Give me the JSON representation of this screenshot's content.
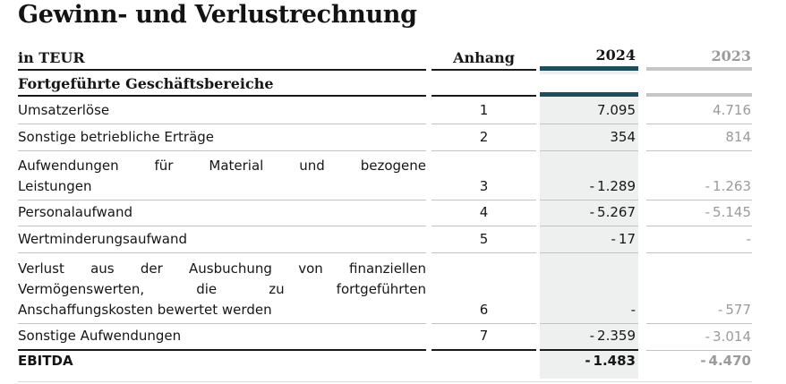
{
  "page": {
    "title": "Gewinn- und Verlustrechnung"
  },
  "table": {
    "unit_label": "in TEUR",
    "header": {
      "anhang": "Anhang",
      "col2024": "2024",
      "col2023": "2023"
    },
    "section": {
      "label": "Fortgeführte Geschäftsbereiche"
    },
    "rows": [
      {
        "anhang": "1",
        "v2024": "7.095",
        "v2023": "4.716",
        "label_lines": [
          "Umsatzerlöse"
        ]
      },
      {
        "anhang": "2",
        "v2024": "354",
        "v2023": "814",
        "label_lines": [
          "Sonstige betriebliche Erträge"
        ]
      },
      {
        "anhang": "3",
        "v2024": "- 1.289",
        "v2023": "- 1.263",
        "label_lines": [
          "Aufwendungen für Material und bezogene",
          "Leistungen"
        ]
      },
      {
        "anhang": "4",
        "v2024": "- 5.267",
        "v2023": "- 5.145",
        "label_lines": [
          "Personalaufwand"
        ]
      },
      {
        "anhang": "5",
        "v2024": "- 17",
        "v2023": "-",
        "label_lines": [
          "Wertminderungsaufwand"
        ]
      },
      {
        "anhang": "6",
        "v2024": "-",
        "v2023": "- 577",
        "label_lines": [
          "Verlust aus der Ausbuchung von finanziellen",
          "Vermögenswerten, die zu fortgeführten",
          "Anschaffungskosten bewertet werden"
        ]
      },
      {
        "anhang": "7",
        "v2024": "- 2.359",
        "v2023": "- 3.014",
        "label_lines": [
          "Sonstige Aufwendungen"
        ]
      },
      {
        "anhang": "",
        "v2024": "- 1.483",
        "v2023": "- 4.470",
        "label_lines": [
          "EBITDA"
        ]
      }
    ],
    "colors": {
      "accent_2024": "#1d4e60",
      "accent_2023": "#c6c6c6",
      "shaded_column_bg": "#eef0f0",
      "muted_text": "#9b9b9b"
    }
  }
}
